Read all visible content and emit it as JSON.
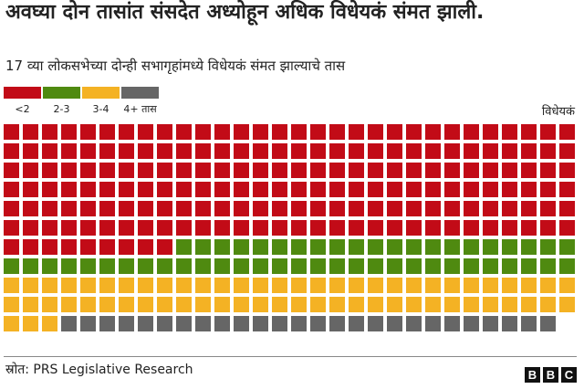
{
  "header": {
    "title": "अवघ्या दोन तासांत संसदेत अध्योहून अधिक विधेयकं संमत झाली.",
    "subtitle": "17 व्या लोकसभेच्या दोन्ही सभागृहांमध्ये विधेयकं संमत झाल्याचे तास",
    "unit_label": "विधेयकं"
  },
  "legend": [
    {
      "label": "<2",
      "color": "#c20b17"
    },
    {
      "label": "2-3",
      "color": "#4f8a10"
    },
    {
      "label": "3-4",
      "color": "#f4b224"
    },
    {
      "label": "4+ तास",
      "color": "#666666"
    }
  ],
  "chart_data": {
    "type": "waffle",
    "columns": 30,
    "categories": [
      "<2",
      "2-3",
      "3-4",
      "4+ तास"
    ],
    "values": [
      189,
      51,
      63,
      26
    ],
    "colors": [
      "#c20b17",
      "#4f8a10",
      "#f4b224",
      "#666666"
    ],
    "series_label": "विधेयकं"
  },
  "footer": {
    "source": "स्रोत: PRS Legislative Research",
    "logo_letters": [
      "B",
      "B",
      "C"
    ]
  }
}
